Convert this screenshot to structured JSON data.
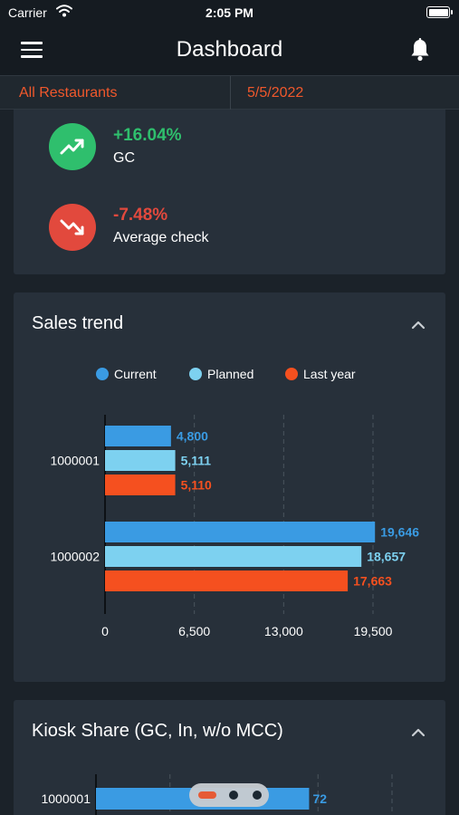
{
  "status_bar": {
    "carrier": "Carrier",
    "time": "2:05 PM"
  },
  "nav": {
    "title": "Dashboard",
    "menu_icon": "hamburger-menu-icon",
    "bell_icon": "bell-icon"
  },
  "filters": {
    "restaurant": "All Restaurants",
    "date": "5/5/2022"
  },
  "kpis": [
    {
      "value": "+16.04%",
      "label": "GC",
      "trend": "up",
      "color": "#2fbf6d",
      "icon": "trending-up-icon"
    },
    {
      "value": "-7.48%",
      "label": "Average check",
      "trend": "down",
      "color": "#e2493d",
      "icon": "trending-down-icon"
    }
  ],
  "sales_trend": {
    "title": "Sales trend",
    "chart_data": {
      "type": "bar",
      "orientation": "horizontal",
      "categories": [
        "1000001",
        "1000002"
      ],
      "series": [
        {
          "name": "Current",
          "color": "#3a9be3",
          "values": [
            4800,
            19646
          ],
          "labels": [
            "4,800",
            "19,646"
          ]
        },
        {
          "name": "Planned",
          "color": "#7dd1f0",
          "values": [
            5111,
            18657
          ],
          "labels": [
            "5,111",
            "18,657"
          ]
        },
        {
          "name": "Last year",
          "color": "#f5501f",
          "values": [
            5110,
            17663
          ],
          "labels": [
            "5,110",
            "17,663"
          ]
        }
      ],
      "x_ticks": [
        0,
        6500,
        13000,
        19500
      ],
      "x_tick_labels": [
        "0",
        "6,500",
        "13,000",
        "19,500"
      ],
      "xlim": [
        0,
        19500
      ],
      "grid": true,
      "legend_position": "top"
    }
  },
  "kiosk_share": {
    "title": "Kiosk Share (GC, In, w/o MCC)",
    "chart_data": {
      "type": "bar",
      "orientation": "horizontal",
      "categories": [
        "1000001"
      ],
      "series": [
        {
          "name": "",
          "color": "#3a9be3",
          "values": [
            72
          ],
          "labels": [
            "72"
          ]
        }
      ],
      "xlim": [
        0,
        100
      ]
    }
  }
}
